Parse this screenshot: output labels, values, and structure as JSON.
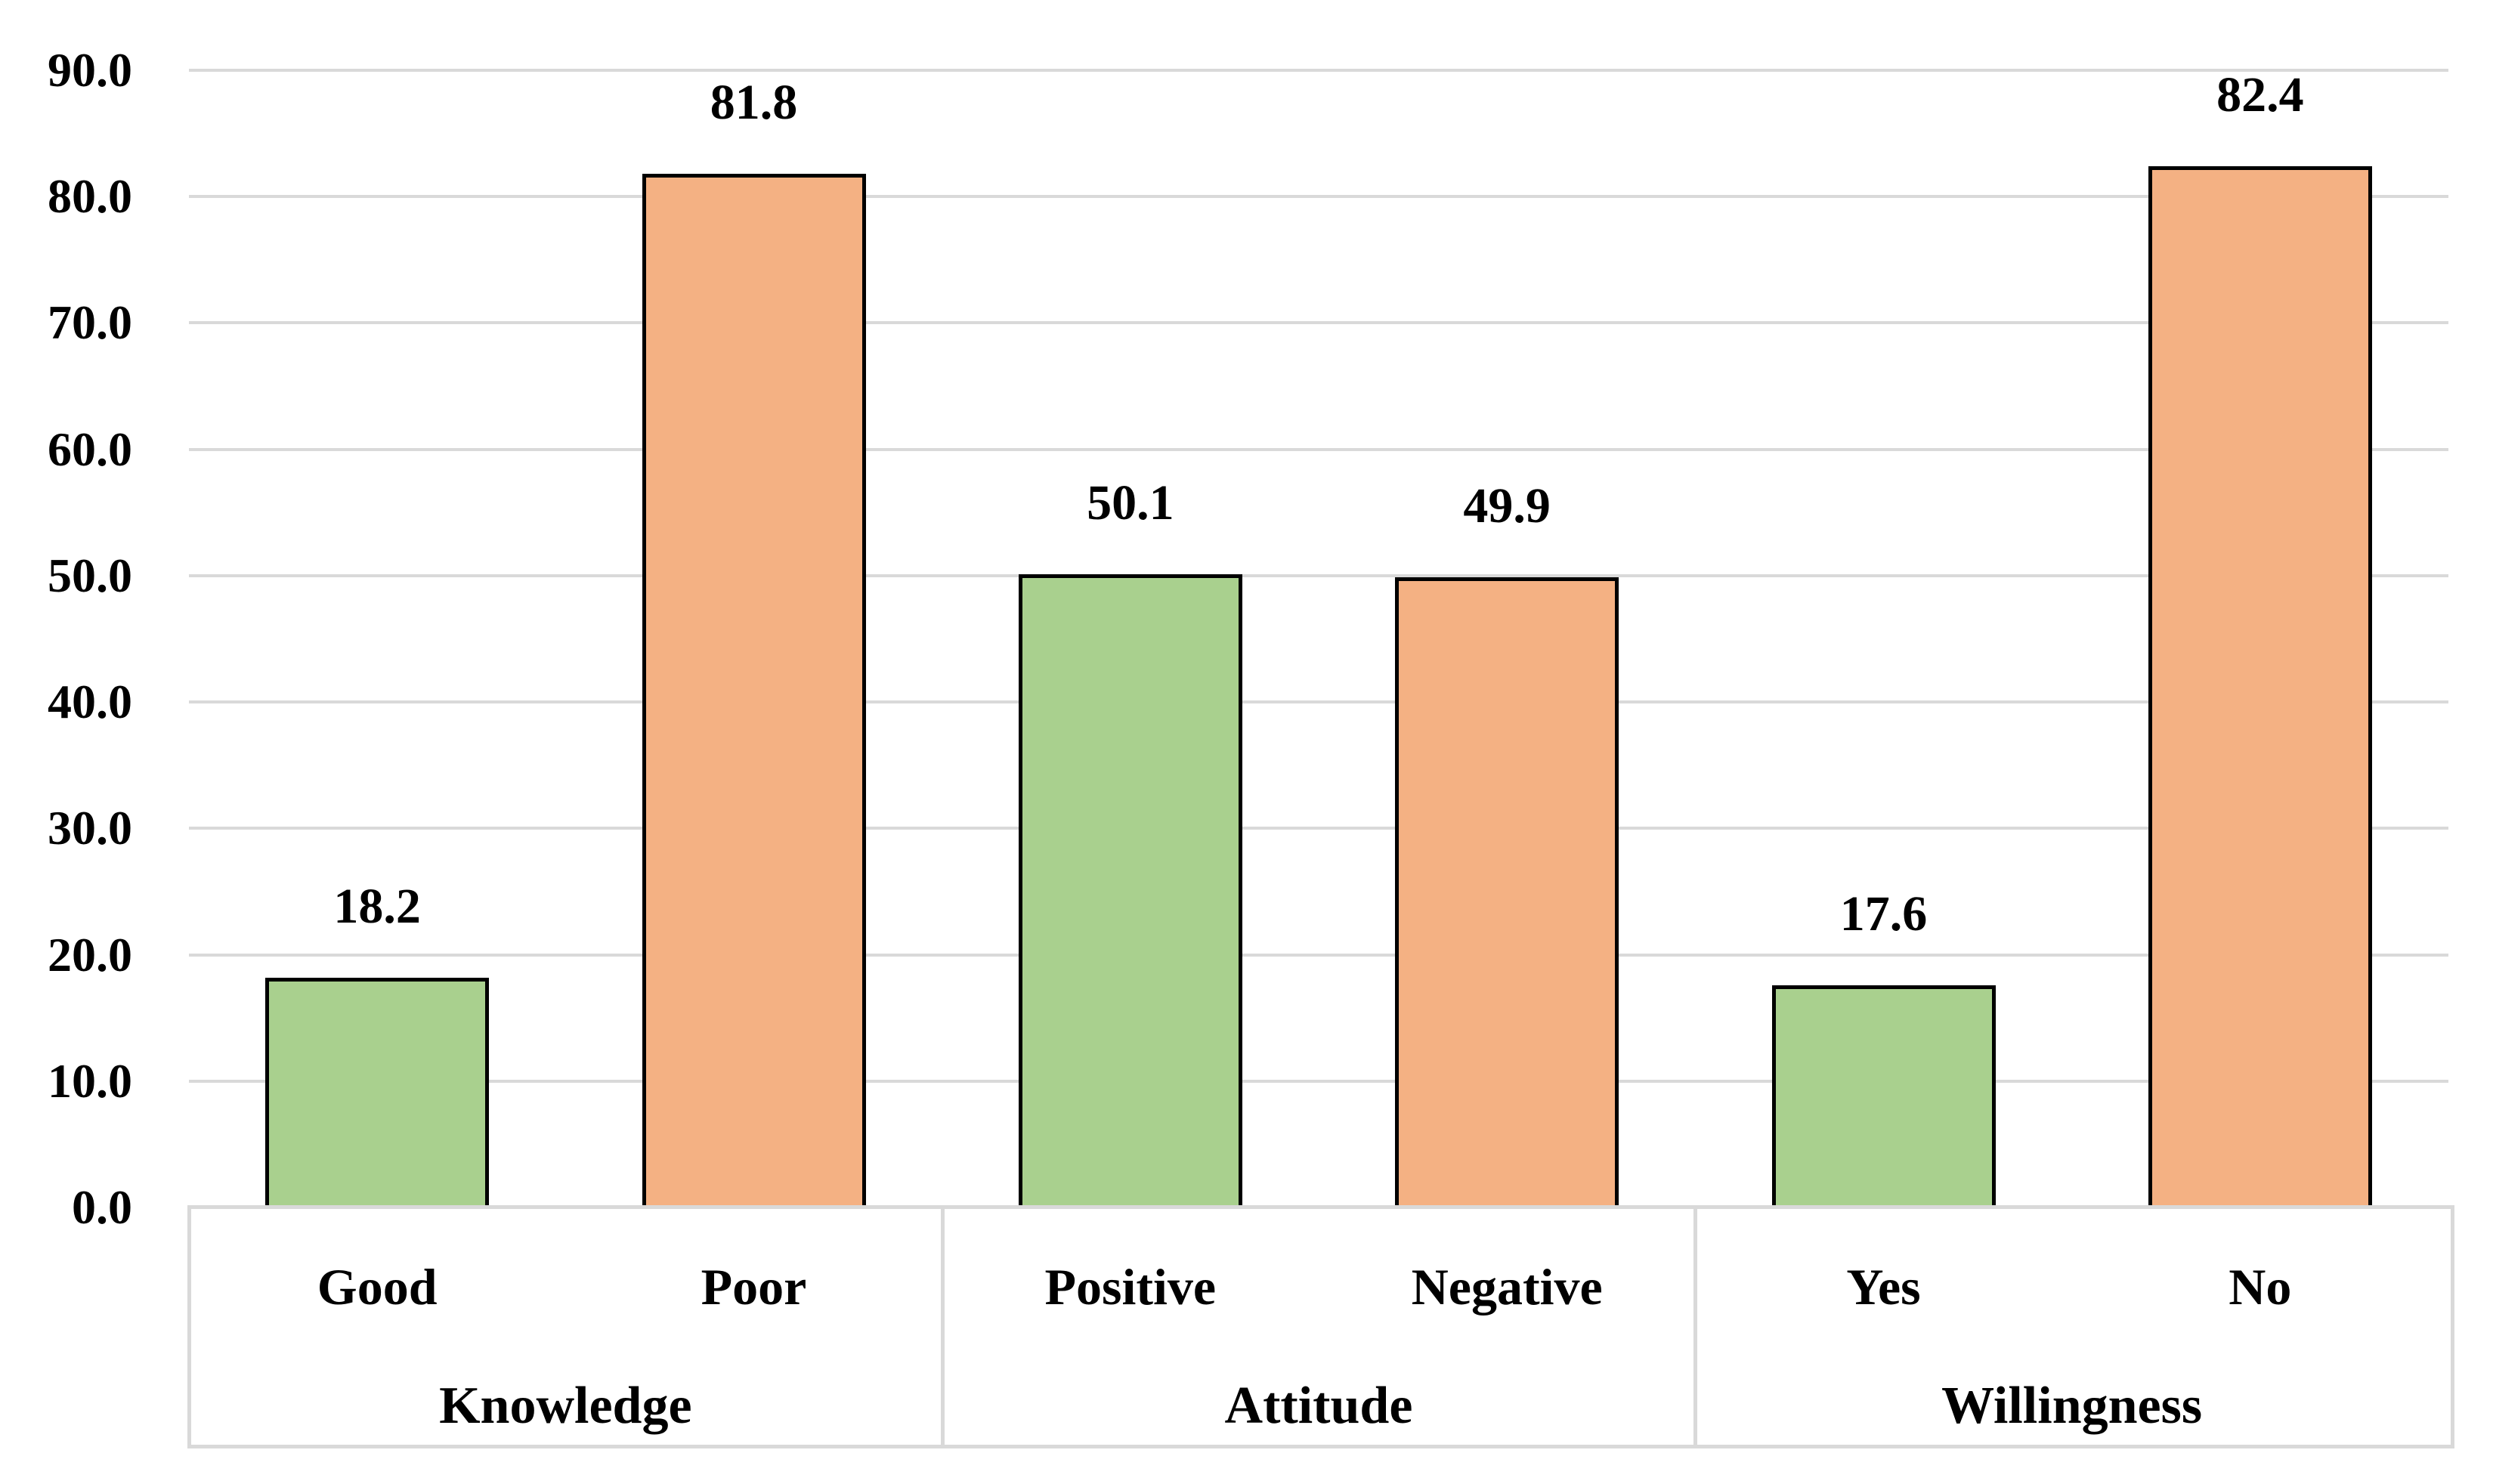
{
  "chart_data": {
    "type": "bar",
    "title": "",
    "xlabel": "",
    "ylabel": "",
    "categories": [
      "Good",
      "Poor",
      "Positive",
      "Negative",
      "Yes",
      "No"
    ],
    "values": [
      18.2,
      81.8,
      50.1,
      49.9,
      17.6,
      82.4
    ],
    "data_labels": [
      "18.2",
      "81.8",
      "50.1",
      "49.9",
      "17.6",
      "82.4"
    ],
    "groups": [
      {
        "label": "Knowledge",
        "categories": [
          "Good",
          "Poor"
        ]
      },
      {
        "label": "Attitude",
        "categories": [
          "Positive",
          "Negative"
        ]
      },
      {
        "label": "Willingness",
        "categories": [
          "Yes",
          "No"
        ]
      }
    ],
    "bar_fill_colors": [
      "#A9D08E",
      "#F4B183",
      "#A9D08E",
      "#F4B183",
      "#A9D08E",
      "#F4B183"
    ],
    "bar_border_color": "#000000",
    "ylim": [
      0,
      90
    ],
    "ytick_step": 10,
    "ytick_labels": [
      "0.0",
      "10.0",
      "20.0",
      "30.0",
      "40.0",
      "50.0",
      "60.0",
      "70.0",
      "80.0",
      "90.0"
    ],
    "grid": true,
    "gridline_color": "#D9D9D9",
    "axis_box_color": "#D9D9D9",
    "legend_position": "none",
    "colors": {
      "positive_option_fill": "#A9D08E",
      "negative_option_fill": "#F4B183",
      "text": "#000000"
    }
  }
}
